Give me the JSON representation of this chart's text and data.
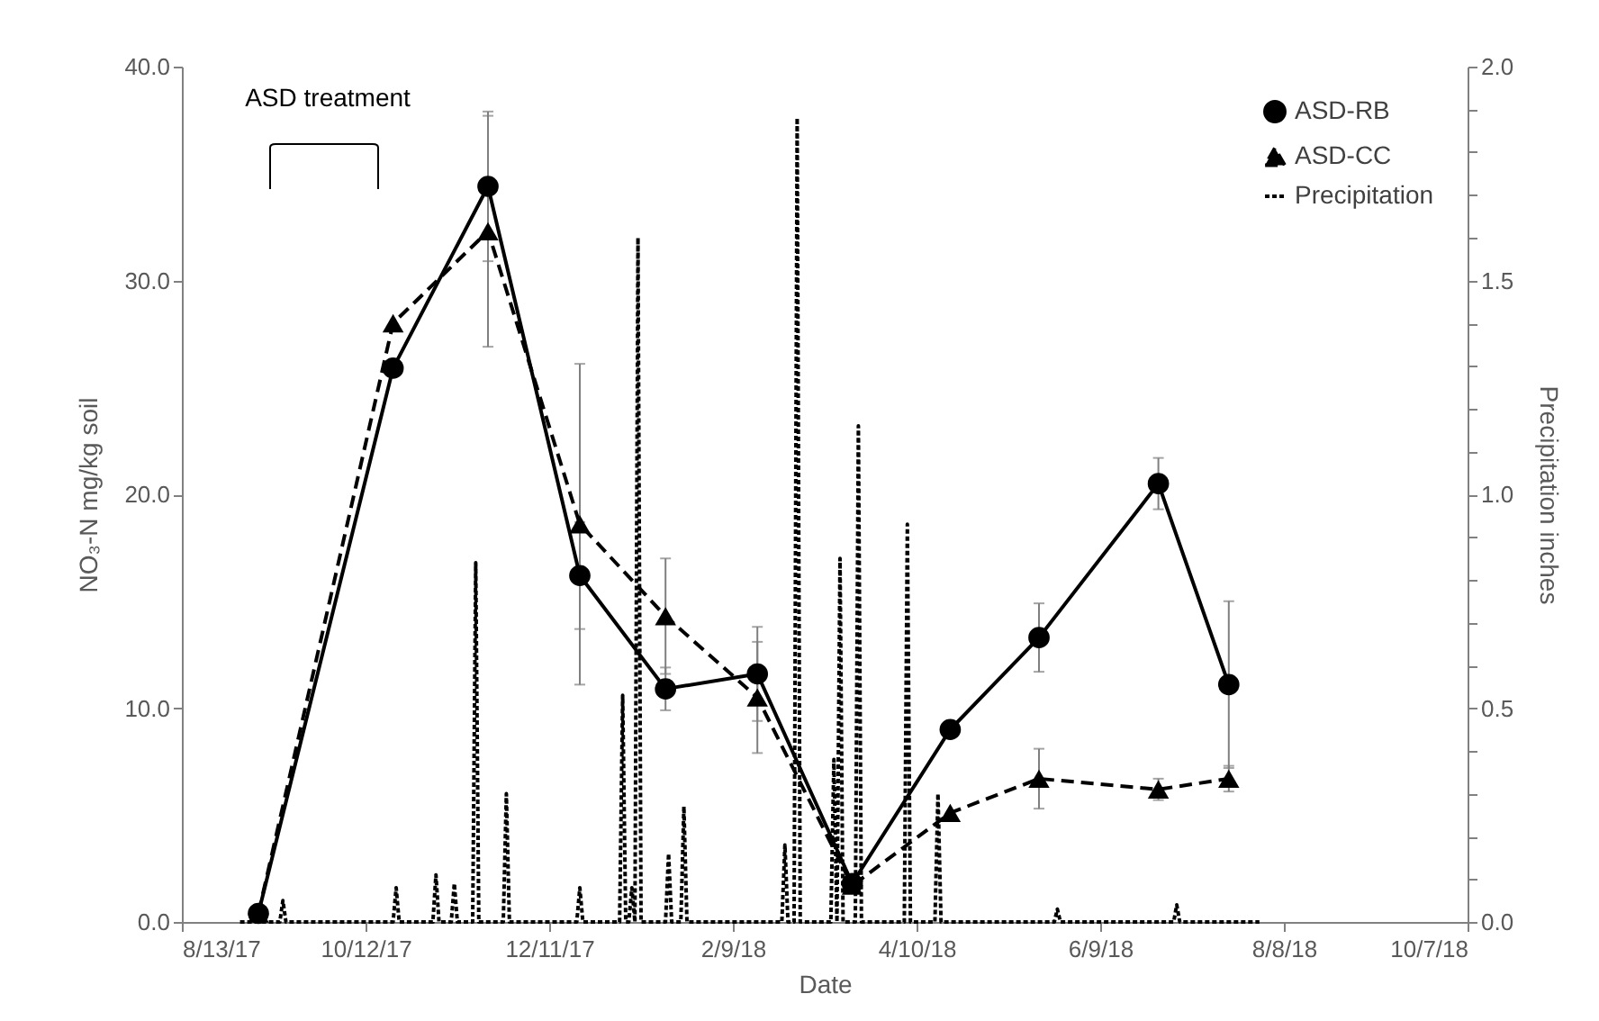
{
  "chart_data": {
    "type": "line",
    "xlabel": "Date",
    "ylabel": "NO₃-N mg/kg soil",
    "y2label": "Precipitation inches",
    "annotations": [
      "ASD treatment"
    ],
    "xlim": [
      "2017-08-13",
      "2018-10-07"
    ],
    "xticks": [
      {
        "value": "2017-08-13",
        "label": "8/13/17"
      },
      {
        "value": "2017-10-12",
        "label": "10/12/17"
      },
      {
        "value": "2017-12-11",
        "label": "12/11/17"
      },
      {
        "value": "2018-02-09",
        "label": "2/9/18"
      },
      {
        "value": "2018-04-10",
        "label": "4/10/18"
      },
      {
        "value": "2018-06-09",
        "label": "6/9/18"
      },
      {
        "value": "2018-08-08",
        "label": "8/8/18"
      },
      {
        "value": "2018-10-07",
        "label": "10/7/18"
      }
    ],
    "ylim": [
      0,
      40
    ],
    "yticks": [
      {
        "value": 0,
        "label": "0.0"
      },
      {
        "value": 10,
        "label": "10.0"
      },
      {
        "value": 20,
        "label": "20.0"
      },
      {
        "value": 30,
        "label": "30.0"
      },
      {
        "value": 40,
        "label": "40.0"
      }
    ],
    "y2lim": [
      0,
      2
    ],
    "y2ticks": [
      {
        "value": 0,
        "label": "0.0"
      },
      {
        "value": 0.1,
        "label": null
      },
      {
        "value": 0.2,
        "label": null
      },
      {
        "value": 0.3,
        "label": null
      },
      {
        "value": 0.4,
        "label": null
      },
      {
        "value": 0.5,
        "label": "0.5"
      },
      {
        "value": 0.6,
        "label": null
      },
      {
        "value": 0.7,
        "label": null
      },
      {
        "value": 0.8,
        "label": null
      },
      {
        "value": 0.9,
        "label": null
      },
      {
        "value": 1,
        "label": "1.0"
      },
      {
        "value": 1.1,
        "label": null
      },
      {
        "value": 1.2,
        "label": null
      },
      {
        "value": 1.3,
        "label": null
      },
      {
        "value": 1.4,
        "label": null
      },
      {
        "value": 1.5,
        "label": "1.5"
      },
      {
        "value": 1.6,
        "label": null
      },
      {
        "value": 1.7,
        "label": null
      },
      {
        "value": 1.8,
        "label": null
      },
      {
        "value": 1.9,
        "label": null
      },
      {
        "value": 2,
        "label": "2.0"
      }
    ],
    "grid": false,
    "legend": "top right",
    "x": [
      "2017-09-07",
      "2017-10-21",
      "2017-11-21",
      "2017-12-21",
      "2018-01-18",
      "2018-02-17",
      "2018-03-20",
      "2018-04-21",
      "2018-05-20",
      "2018-06-28",
      "2018-07-21"
    ],
    "series": [
      {
        "name": "ASD-RB",
        "color": "#000000",
        "marker": "circle",
        "line_style": "solid",
        "values": [
          0.4,
          25.9,
          34.4,
          16.2,
          10.9,
          11.6,
          1.8,
          9.0,
          13.3,
          20.5,
          11.1
        ],
        "errors": [
          null,
          null,
          3.5,
          2.5,
          1.0,
          2.2,
          null,
          null,
          1.6,
          1.2,
          3.9
        ]
      },
      {
        "name": "ASD-CC",
        "color": "#000000",
        "marker": "triangle",
        "line_style": "dashed",
        "values": [
          0.4,
          28.0,
          32.3,
          18.6,
          14.3,
          10.5,
          1.7,
          5.1,
          6.7,
          6.2,
          6.7
        ],
        "errors": [
          null,
          null,
          5.4,
          7.5,
          2.7,
          2.6,
          null,
          null,
          1.4,
          0.5,
          0.6
        ]
      },
      {
        "name": "Precipitation",
        "color": "#000000",
        "marker": "none",
        "line_style": "dotted",
        "axis": "y2",
        "x": [
          "2017-09-01",
          "2017-09-14",
          "2017-09-15",
          "2017-09-16",
          "2017-10-21",
          "2017-10-22",
          "2017-10-23",
          "2017-11-03",
          "2017-11-04",
          "2017-11-05",
          "2017-11-09",
          "2017-11-10",
          "2017-11-11",
          "2017-11-16",
          "2017-11-17",
          "2017-11-18",
          "2017-11-26",
          "2017-11-27",
          "2017-11-28",
          "2017-12-20",
          "2017-12-21",
          "2017-12-22",
          "2018-01-03",
          "2018-01-04",
          "2018-01-05",
          "2018-01-06",
          "2018-01-07",
          "2018-01-08",
          "2018-01-09",
          "2018-01-10",
          "2018-01-18",
          "2018-01-19",
          "2018-01-20",
          "2018-01-23",
          "2018-01-24",
          "2018-01-25",
          "2018-02-25",
          "2018-02-26",
          "2018-02-27",
          "2018-03-01",
          "2018-03-02",
          "2018-03-03",
          "2018-03-13",
          "2018-03-14",
          "2018-03-15",
          "2018-03-16",
          "2018-03-17",
          "2018-03-21",
          "2018-03-22",
          "2018-03-23",
          "2018-04-06",
          "2018-04-07",
          "2018-04-08",
          "2018-04-16",
          "2018-04-17",
          "2018-04-18",
          "2018-05-25",
          "2018-05-26",
          "2018-05-27",
          "2018-07-03",
          "2018-07-04",
          "2018-07-05",
          "2018-07-31"
        ],
        "values": [
          0,
          0,
          0.05,
          0,
          0,
          0.08,
          0,
          0,
          0.11,
          0,
          0,
          0.09,
          0,
          0,
          0.84,
          0,
          0,
          0.3,
          0,
          0,
          0.08,
          0,
          0,
          0.53,
          0,
          0,
          0.08,
          0,
          1.6,
          0,
          0,
          0.16,
          0,
          0,
          0.27,
          0,
          0,
          0.18,
          0,
          0,
          1.88,
          0,
          0,
          0.38,
          0,
          0.85,
          0,
          0,
          1.16,
          0,
          0,
          0.93,
          0,
          0,
          0.3,
          0,
          0,
          0.03,
          0,
          0,
          0.04,
          0,
          0
        ]
      }
    ]
  }
}
